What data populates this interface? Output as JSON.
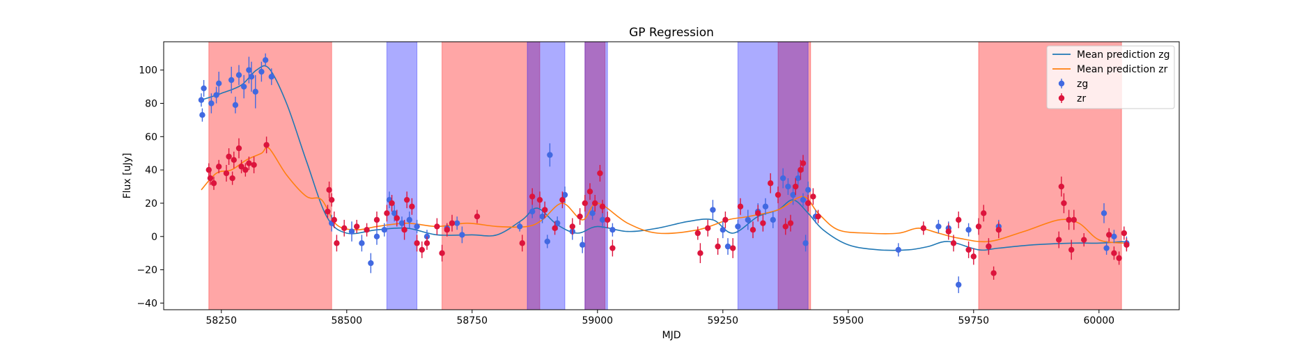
{
  "chart_data": {
    "type": "scatter",
    "title": "GP Regression",
    "xlabel": "MJD",
    "ylabel": "Flux [uJy]",
    "xlim": [
      58135,
      60160
    ],
    "ylim": [
      -44,
      117
    ],
    "xticks": [
      58250,
      58500,
      58750,
      59000,
      59250,
      59500,
      59750,
      60000
    ],
    "yticks": [
      -40,
      -20,
      0,
      20,
      40,
      60,
      80,
      100
    ],
    "legend_position": "top-right",
    "legend": [
      "Mean prediction zg",
      "Mean prediction zr",
      "zg",
      "zr"
    ],
    "colors": {
      "zg_line": "#1f77b4",
      "zr_line": "#ff7f0e",
      "zg_points": "#4169e1",
      "zr_points": "#dc143c",
      "red_span": "#ff0000",
      "blue_span": "#0000ff"
    },
    "spans_zr": [
      [
        58225,
        58470
      ],
      [
        58690,
        58885
      ],
      [
        58975,
        59015
      ],
      [
        59360,
        59425
      ],
      [
        59760,
        60045
      ]
    ],
    "spans_zg": [
      [
        58580,
        58640
      ],
      [
        58860,
        58935
      ],
      [
        58975,
        59020
      ],
      [
        59280,
        59420
      ]
    ],
    "series": [
      {
        "name": "Mean prediction zg",
        "type": "line",
        "x": [
          58210,
          58250,
          58290,
          58320,
          58345,
          58380,
          58420,
          58460,
          58500,
          58560,
          58620,
          58680,
          58750,
          58800,
          58850,
          58880,
          58920,
          58960,
          59000,
          59060,
          59120,
          59180,
          59230,
          59270,
          59320,
          59360,
          59390,
          59420,
          59450,
          59500,
          59560,
          59620,
          59660,
          59700,
          59760,
          59800,
          59870,
          59950,
          60000,
          60050
        ],
        "y": [
          82,
          86,
          91,
          100,
          101,
          80,
          45,
          12,
          2,
          4,
          5,
          1,
          1,
          1,
          10,
          17,
          7,
          2,
          6,
          3,
          5,
          9,
          10,
          2,
          12,
          16,
          22,
          14,
          4,
          -5,
          -8,
          -8,
          -6,
          -3,
          -8,
          -7,
          -5,
          -4,
          -4,
          -3
        ]
      },
      {
        "name": "Mean prediction zr",
        "type": "line",
        "x": [
          58210,
          58240,
          58270,
          58300,
          58330,
          58345,
          58380,
          58420,
          58450,
          58480,
          58520,
          58560,
          58620,
          58680,
          58740,
          58800,
          58860,
          58890,
          58930,
          58970,
          59000,
          59060,
          59120,
          59200,
          59260,
          59300,
          59360,
          59410,
          59440,
          59480,
          59540,
          59600,
          59640,
          59680,
          59720,
          59780,
          59850,
          59920,
          59960,
          60000,
          60050
        ],
        "y": [
          28,
          38,
          40,
          46,
          50,
          53,
          37,
          24,
          22,
          7,
          4,
          6,
          8,
          6,
          8,
          6,
          6,
          10,
          20,
          10,
          20,
          8,
          2,
          4,
          10,
          12,
          16,
          24,
          14,
          4,
          2,
          2,
          5,
          2,
          -1,
          -3,
          3,
          10,
          8,
          -2,
          -4
        ]
      },
      {
        "name": "zg",
        "type": "points",
        "points": [
          [
            58210,
            82,
            4
          ],
          [
            58212,
            73,
            4
          ],
          [
            58215,
            89,
            5
          ],
          [
            58230,
            80,
            6
          ],
          [
            58240,
            85,
            5
          ],
          [
            58245,
            92,
            7
          ],
          [
            58270,
            94,
            8
          ],
          [
            58278,
            79,
            5
          ],
          [
            58285,
            97,
            6
          ],
          [
            58295,
            90,
            7
          ],
          [
            58305,
            100,
            8
          ],
          [
            58310,
            96,
            9
          ],
          [
            58318,
            87,
            10
          ],
          [
            58330,
            99,
            6
          ],
          [
            58338,
            106,
            4
          ],
          [
            58350,
            96,
            5
          ],
          [
            58470,
            8,
            5
          ],
          [
            58510,
            3,
            6
          ],
          [
            58530,
            -4,
            5
          ],
          [
            58548,
            -16,
            6
          ],
          [
            58560,
            0,
            5
          ],
          [
            58575,
            4,
            4
          ],
          [
            58585,
            22,
            5
          ],
          [
            58595,
            14,
            5
          ],
          [
            58610,
            8,
            4
          ],
          [
            58625,
            10,
            5
          ],
          [
            58640,
            6,
            4
          ],
          [
            58660,
            0,
            4
          ],
          [
            58700,
            5,
            3
          ],
          [
            58720,
            8,
            4
          ],
          [
            58730,
            1,
            5
          ],
          [
            58845,
            6,
            3
          ],
          [
            58870,
            15,
            4
          ],
          [
            58890,
            12,
            4
          ],
          [
            58900,
            -3,
            4
          ],
          [
            58905,
            49,
            7
          ],
          [
            58920,
            8,
            4
          ],
          [
            58935,
            25,
            5
          ],
          [
            58950,
            3,
            5
          ],
          [
            58970,
            -5,
            5
          ],
          [
            58990,
            14,
            4
          ],
          [
            59010,
            10,
            5
          ],
          [
            59030,
            4,
            4
          ],
          [
            59230,
            16,
            6
          ],
          [
            59250,
            4,
            5
          ],
          [
            59260,
            -6,
            5
          ],
          [
            59280,
            6,
            4
          ],
          [
            59300,
            10,
            6
          ],
          [
            59320,
            15,
            5
          ],
          [
            59335,
            18,
            5
          ],
          [
            59350,
            10,
            5
          ],
          [
            59370,
            35,
            6
          ],
          [
            59380,
            30,
            5
          ],
          [
            59390,
            25,
            6
          ],
          [
            59400,
            35,
            5
          ],
          [
            59410,
            22,
            4
          ],
          [
            59415,
            -4,
            5
          ],
          [
            59420,
            28,
            5
          ],
          [
            59435,
            12,
            4
          ],
          [
            59600,
            -8,
            4
          ],
          [
            59680,
            6,
            4
          ],
          [
            59700,
            5,
            4
          ],
          [
            59720,
            -29,
            5
          ],
          [
            59740,
            4,
            4
          ],
          [
            59780,
            -6,
            4
          ],
          [
            59800,
            6,
            4
          ],
          [
            60010,
            14,
            6
          ],
          [
            60015,
            -7,
            4
          ],
          [
            60030,
            0,
            4
          ],
          [
            60055,
            -4,
            4
          ]
        ]
      },
      {
        "name": "zr",
        "type": "points",
        "points": [
          [
            58225,
            40,
            4
          ],
          [
            58228,
            35,
            4
          ],
          [
            58235,
            32,
            4
          ],
          [
            58245,
            42,
            4
          ],
          [
            58260,
            38,
            5
          ],
          [
            58265,
            48,
            5
          ],
          [
            58272,
            35,
            4
          ],
          [
            58275,
            46,
            5
          ],
          [
            58285,
            53,
            6
          ],
          [
            58290,
            42,
            4
          ],
          [
            58298,
            40,
            4
          ],
          [
            58305,
            44,
            4
          ],
          [
            58315,
            43,
            5
          ],
          [
            58340,
            55,
            5
          ],
          [
            58462,
            15,
            4
          ],
          [
            58465,
            28,
            5
          ],
          [
            58470,
            22,
            4
          ],
          [
            58475,
            10,
            5
          ],
          [
            58480,
            -4,
            5
          ],
          [
            58495,
            5,
            5
          ],
          [
            58520,
            6,
            4
          ],
          [
            58540,
            4,
            4
          ],
          [
            58560,
            10,
            5
          ],
          [
            58580,
            14,
            5
          ],
          [
            58590,
            20,
            5
          ],
          [
            58600,
            11,
            5
          ],
          [
            58615,
            4,
            6
          ],
          [
            58620,
            22,
            5
          ],
          [
            58630,
            18,
            5
          ],
          [
            58640,
            -4,
            5
          ],
          [
            58650,
            -8,
            5
          ],
          [
            58660,
            -4,
            4
          ],
          [
            58680,
            6,
            5
          ],
          [
            58690,
            -10,
            5
          ],
          [
            58700,
            4,
            4
          ],
          [
            58710,
            8,
            5
          ],
          [
            58760,
            12,
            4
          ],
          [
            58850,
            -4,
            5
          ],
          [
            58870,
            24,
            5
          ],
          [
            58885,
            22,
            5
          ],
          [
            58895,
            16,
            5
          ],
          [
            58915,
            5,
            4
          ],
          [
            58930,
            22,
            5
          ],
          [
            58950,
            6,
            5
          ],
          [
            58965,
            12,
            5
          ],
          [
            58975,
            20,
            5
          ],
          [
            58985,
            27,
            5
          ],
          [
            58995,
            20,
            5
          ],
          [
            59005,
            38,
            5
          ],
          [
            59010,
            18,
            4
          ],
          [
            59020,
            10,
            5
          ],
          [
            59030,
            -7,
            5
          ],
          [
            59200,
            2,
            4
          ],
          [
            59205,
            -10,
            6
          ],
          [
            59220,
            5,
            5
          ],
          [
            59240,
            -6,
            5
          ],
          [
            59255,
            10,
            5
          ],
          [
            59270,
            -7,
            6
          ],
          [
            59285,
            18,
            5
          ],
          [
            59310,
            4,
            5
          ],
          [
            59320,
            14,
            5
          ],
          [
            59330,
            8,
            5
          ],
          [
            59345,
            32,
            6
          ],
          [
            59360,
            25,
            5
          ],
          [
            59375,
            6,
            5
          ],
          [
            59385,
            8,
            5
          ],
          [
            59395,
            30,
            5
          ],
          [
            59405,
            40,
            6
          ],
          [
            59410,
            44,
            5
          ],
          [
            59420,
            20,
            5
          ],
          [
            59430,
            24,
            5
          ],
          [
            59440,
            12,
            4
          ],
          [
            59650,
            5,
            4
          ],
          [
            59700,
            3,
            5
          ],
          [
            59710,
            -4,
            5
          ],
          [
            59720,
            10,
            5
          ],
          [
            59740,
            -8,
            5
          ],
          [
            59750,
            -12,
            5
          ],
          [
            59760,
            6,
            5
          ],
          [
            59770,
            14,
            5
          ],
          [
            59780,
            -6,
            5
          ],
          [
            59790,
            -22,
            4
          ],
          [
            59800,
            4,
            5
          ],
          [
            59920,
            -2,
            5
          ],
          [
            59925,
            30,
            6
          ],
          [
            59930,
            20,
            6
          ],
          [
            59940,
            10,
            6
          ],
          [
            59945,
            -8,
            6
          ],
          [
            59950,
            10,
            6
          ],
          [
            59970,
            -2,
            4
          ],
          [
            60020,
            1,
            4
          ],
          [
            60030,
            -10,
            4
          ],
          [
            60040,
            -13,
            4
          ],
          [
            60050,
            2,
            4
          ],
          [
            60055,
            -5,
            4
          ]
        ]
      }
    ]
  }
}
